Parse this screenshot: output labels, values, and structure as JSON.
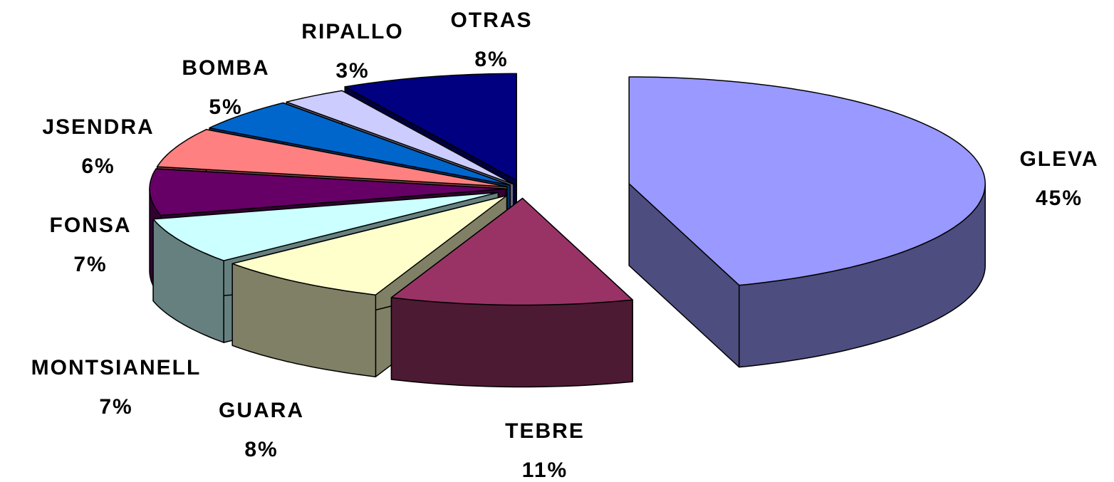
{
  "chart_data": {
    "type": "pie",
    "categories": [
      "GLEVA",
      "TEBRE",
      "GUARA",
      "MONTSIANELL",
      "FONSA",
      "JSENDRA",
      "BOMBA",
      "RIPALLO",
      "OTRAS"
    ],
    "values": [
      45,
      11,
      8,
      7,
      7,
      6,
      5,
      3,
      8
    ],
    "value_labels": [
      "45%",
      "11%",
      "8%",
      "7%",
      "7%",
      "6%",
      "5%",
      "3%",
      "8%"
    ],
    "colors": [
      "#9999ff",
      "#993366",
      "#ffffcc",
      "#ccffff",
      "#660066",
      "#ff8080",
      "#0066cc",
      "#ccccff",
      "#000080"
    ]
  }
}
